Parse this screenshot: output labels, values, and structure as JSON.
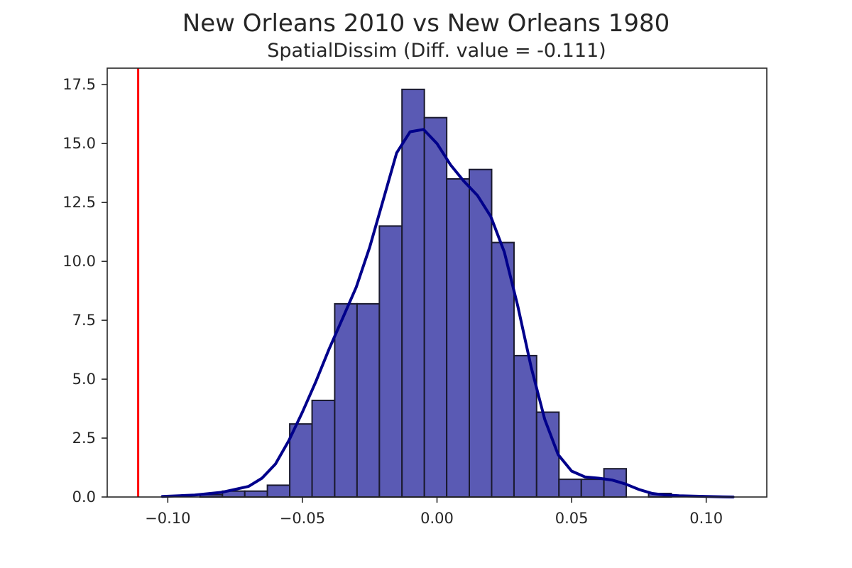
{
  "chart_data": {
    "type": "bar",
    "title": "New Orleans 2010 vs New Orleans 1980",
    "subtitle": "SpatialDissim (Diff. value = -0.111)",
    "xlim": [
      -0.1225,
      0.1225
    ],
    "ylim": [
      0,
      18.2
    ],
    "x_ticks": [
      -0.1,
      -0.05,
      0.0,
      0.05,
      0.1
    ],
    "x_tick_labels": [
      "−0.10",
      "−0.05",
      "0.00",
      "0.05",
      "0.10"
    ],
    "y_ticks": [
      0.0,
      2.5,
      5.0,
      7.5,
      10.0,
      12.5,
      15.0,
      17.5
    ],
    "y_tick_labels": [
      "0.0",
      "2.5",
      "5.0",
      "7.5",
      "10.0",
      "12.5",
      "15.0",
      "17.5"
    ],
    "histogram": {
      "bin_edges": [
        -0.088,
        -0.0797,
        -0.0714,
        -0.063,
        -0.0547,
        -0.0464,
        -0.038,
        -0.0297,
        -0.0214,
        -0.013,
        -0.0047,
        0.0036,
        0.012,
        0.0203,
        0.0286,
        0.037,
        0.0453,
        0.0536,
        0.062,
        0.0703,
        0.0786,
        0.087
      ],
      "counts": [
        0.1,
        0.25,
        0.25,
        0.5,
        3.1,
        4.1,
        8.2,
        8.2,
        11.5,
        17.3,
        16.1,
        13.5,
        13.9,
        10.8,
        6.0,
        3.6,
        0.75,
        0.75,
        1.2,
        0.0,
        0.15
      ],
      "color": "#5a5ab4",
      "edge_color": "#1a1a2e"
    },
    "kde": {
      "color": "#00008b",
      "x": [
        -0.102,
        -0.09,
        -0.08,
        -0.07,
        -0.065,
        -0.06,
        -0.055,
        -0.05,
        -0.045,
        -0.04,
        -0.035,
        -0.03,
        -0.025,
        -0.02,
        -0.015,
        -0.01,
        -0.005,
        0.0,
        0.005,
        0.01,
        0.015,
        0.02,
        0.025,
        0.03,
        0.035,
        0.04,
        0.045,
        0.05,
        0.055,
        0.06,
        0.065,
        0.07,
        0.075,
        0.08,
        0.085,
        0.09,
        0.1,
        0.11
      ],
      "y": [
        0.02,
        0.08,
        0.2,
        0.45,
        0.8,
        1.4,
        2.4,
        3.6,
        4.9,
        6.3,
        7.6,
        8.9,
        10.6,
        12.6,
        14.6,
        15.5,
        15.6,
        15.0,
        14.1,
        13.4,
        12.8,
        11.9,
        10.4,
        8.1,
        5.5,
        3.3,
        1.8,
        1.1,
        0.85,
        0.8,
        0.72,
        0.55,
        0.32,
        0.15,
        0.08,
        0.05,
        0.02,
        0.0
      ]
    },
    "reference_line": {
      "x": -0.111,
      "color": "#ff0000"
    },
    "grid": false
  }
}
